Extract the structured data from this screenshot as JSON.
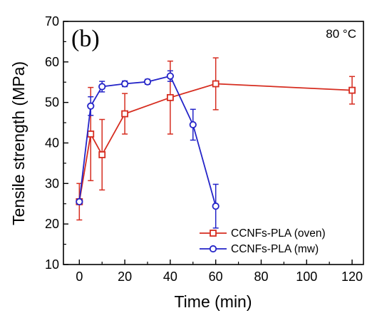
{
  "chart_data": {
    "type": "line",
    "panel_label": "(b)",
    "annotation": "80 °C",
    "xlabel": "Time (min)",
    "ylabel": "Tensile strength (MPa)",
    "xlim": [
      -7,
      125
    ],
    "ylim": [
      10,
      70
    ],
    "xticks": [
      0,
      20,
      40,
      60,
      80,
      100,
      120
    ],
    "yticks": [
      10,
      20,
      30,
      40,
      50,
      60,
      70
    ],
    "legend_position": "bottom-right",
    "series": [
      {
        "name": "CCNFs-PLA (oven)",
        "color": "#d62d20",
        "marker": "square",
        "x": [
          0,
          5,
          10,
          20,
          40,
          60,
          120
        ],
        "y": [
          25.5,
          42.2,
          37.1,
          47.2,
          51.2,
          54.6,
          53.0
        ],
        "err": [
          4.5,
          11.5,
          8.7,
          5.0,
          9.0,
          6.4,
          3.4
        ]
      },
      {
        "name": "CCNFs-PLA (mw)",
        "color": "#2424c8",
        "marker": "circle",
        "x": [
          0,
          5,
          10,
          20,
          30,
          40,
          50,
          60
        ],
        "y": [
          25.5,
          49.1,
          53.9,
          54.6,
          55.1,
          56.5,
          44.5,
          24.4
        ],
        "err": [
          0,
          2.3,
          1.3,
          0.7,
          0.6,
          1.3,
          3.8,
          5.4
        ]
      }
    ]
  }
}
